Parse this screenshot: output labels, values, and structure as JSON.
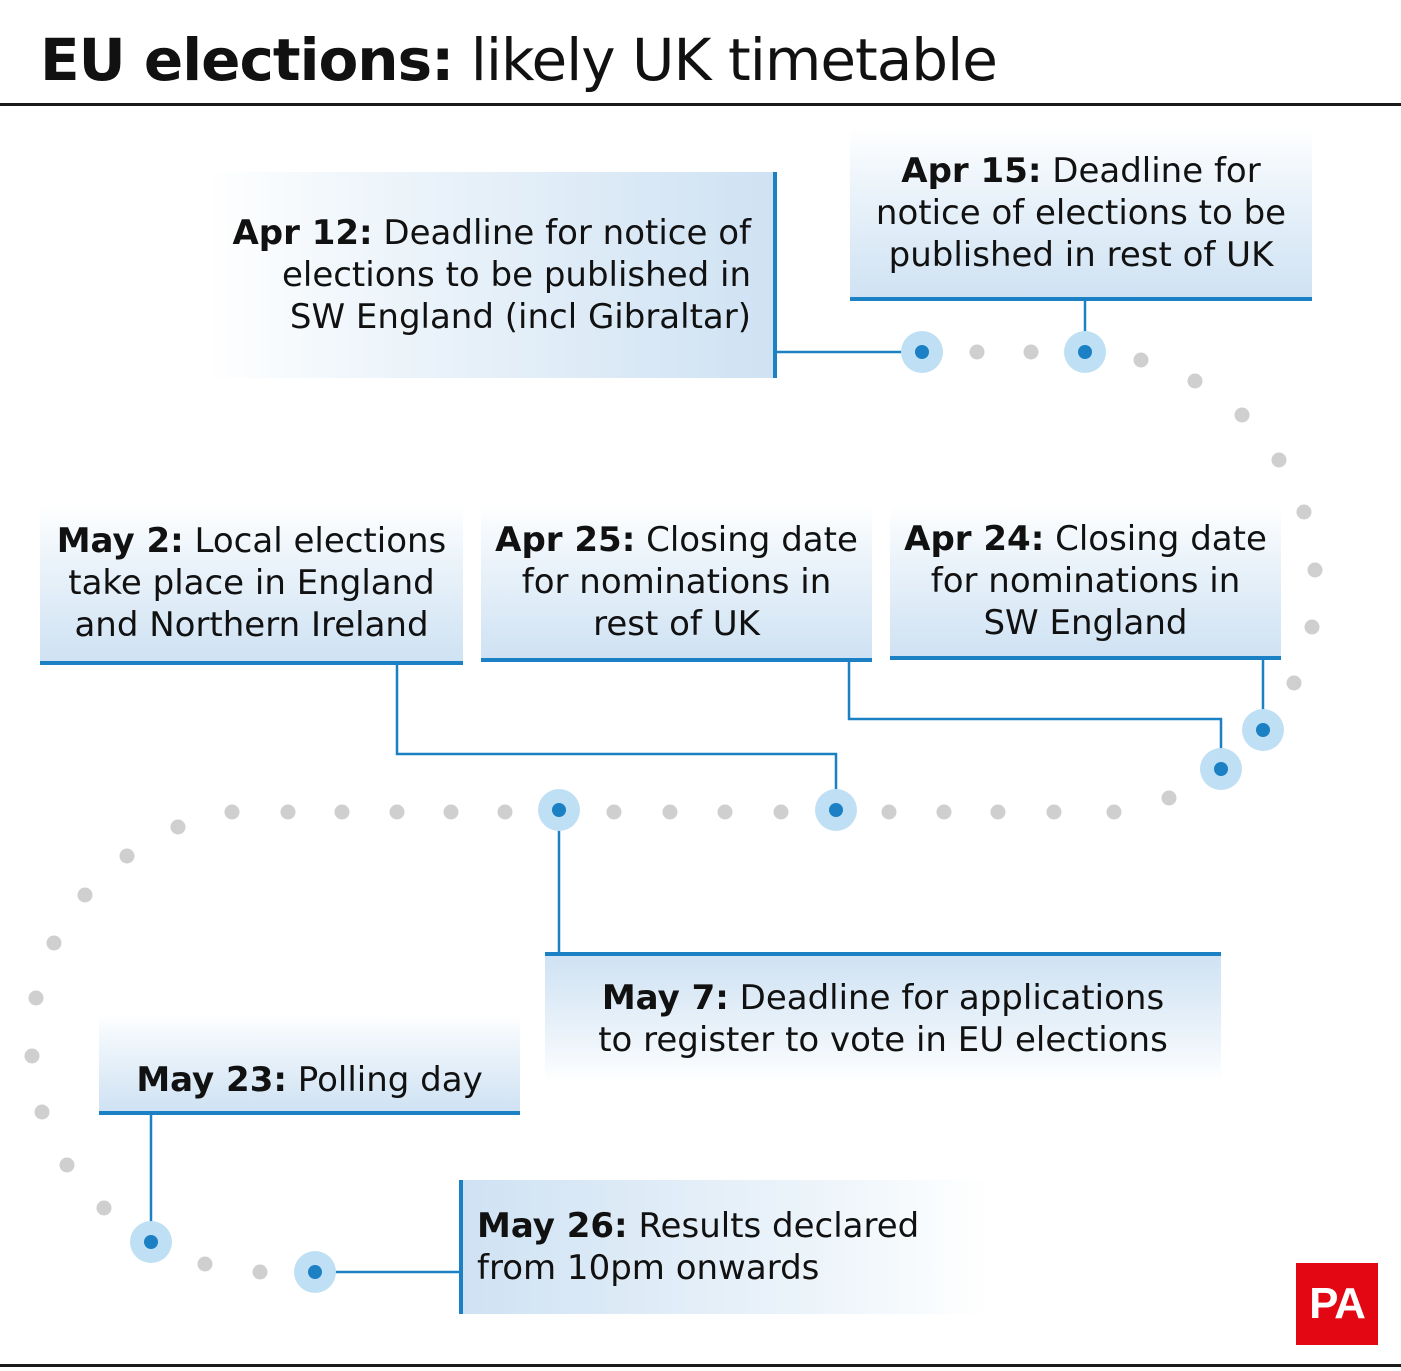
{
  "title": {
    "bold": "EU elections:",
    "regular": " likely UK timetable"
  },
  "colors": {
    "accent": "#1b80c4",
    "halo": "#bfe0f4",
    "dot": "#cfcfcf",
    "logo": "#e30613"
  },
  "events": [
    {
      "id": "apr12",
      "date": "Apr 12:",
      "lines": [
        " Deadline for notice of",
        "elections to be published in",
        "SW England (incl Gibraltar)"
      ]
    },
    {
      "id": "apr15",
      "date": "Apr 15:",
      "lines": [
        " Deadline for",
        "notice of elections to be",
        "published in rest of UK"
      ]
    },
    {
      "id": "apr24",
      "date": "Apr 24:",
      "lines": [
        " Closing date",
        "for nominations in",
        "SW England"
      ]
    },
    {
      "id": "apr25",
      "date": "Apr 25:",
      "lines": [
        " Closing date",
        "for nominations in",
        "rest of UK"
      ]
    },
    {
      "id": "may2",
      "date": "May 2:",
      "lines": [
        " Local elections",
        "take place in England",
        "and Northern Ireland"
      ]
    },
    {
      "id": "may7",
      "date": "May 7:",
      "lines": [
        " Deadline for applications",
        "to register to vote in EU elections"
      ]
    },
    {
      "id": "may23",
      "date": "May 23:",
      "lines": [
        " Polling day"
      ]
    },
    {
      "id": "may26",
      "date": "May 26:",
      "lines": [
        " Results declared",
        "from 10pm onwards"
      ]
    }
  ],
  "logo": {
    "text": "PA"
  }
}
